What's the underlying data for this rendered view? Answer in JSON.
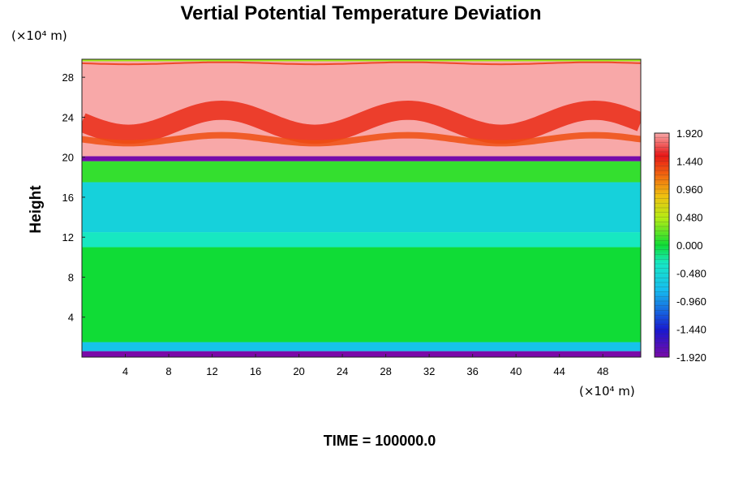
{
  "chart_data": {
    "type": "heatmap",
    "title": "Vertial Potential Temperature Deviation",
    "ylabel": "Height",
    "x_unit_label": "(×10⁴ m)",
    "y_unit_label": "(×10⁴ m)",
    "x_ticks": [
      4,
      8,
      12,
      16,
      20,
      24,
      28,
      32,
      36,
      40,
      44,
      48
    ],
    "y_ticks": [
      4,
      8,
      12,
      16,
      20,
      24,
      28
    ],
    "xlim": [
      0,
      51.5
    ],
    "ylim": [
      0,
      29.8
    ],
    "colorbar": {
      "labels": [
        "1.920",
        "1.440",
        "0.960",
        "0.480",
        "0.000",
        "-0.480",
        "-0.960",
        "-1.440",
        "-1.920"
      ],
      "range": [
        -1.92,
        1.92
      ]
    },
    "field_bands": [
      {
        "y_from": 0.0,
        "y_to": 0.6,
        "value": -1.95
      },
      {
        "y_from": 0.6,
        "y_to": 1.5,
        "value": -0.7
      },
      {
        "y_from": 1.5,
        "y_to": 11.0,
        "value": 0.0
      },
      {
        "y_from": 11.0,
        "y_to": 12.5,
        "value": -0.3
      },
      {
        "y_from": 12.5,
        "y_to": 17.5,
        "value": -0.55
      },
      {
        "y_from": 17.5,
        "y_to": 19.6,
        "value": 0.1
      },
      {
        "y_from": 19.6,
        "y_to": 20.1,
        "value": -1.9
      },
      {
        "y_from": 20.1,
        "y_to": 29.6,
        "value": 1.95
      },
      {
        "y_from": 29.6,
        "y_to": 29.8,
        "value": 0.4
      }
    ],
    "wave_bands": [
      {
        "y_center": 23.5,
        "amplitude": 1.2,
        "value": 1.45
      },
      {
        "y_center": 21.8,
        "amplitude": 0.4,
        "value": 1.3
      },
      {
        "y_center": 29.4,
        "amplitude": 0.1,
        "value": 1.4
      }
    ],
    "time_label": "TIME = 100000.0"
  }
}
